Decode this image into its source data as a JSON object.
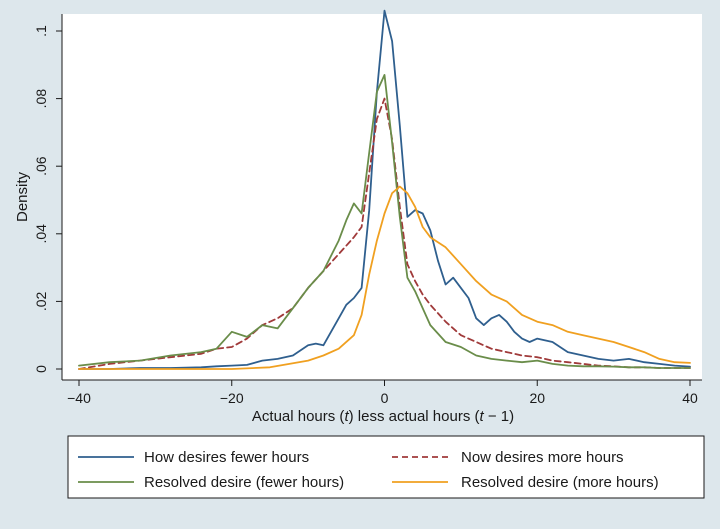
{
  "chart_data": {
    "type": "line",
    "title": "",
    "xlabel": "Actual hours (t) less actual hours (t − 1)",
    "xlabel_parts": [
      "Actual hours (",
      "t",
      ") less actual hours (",
      "t",
      " − 1)"
    ],
    "ylabel": "Density",
    "xlim": [
      -40,
      40
    ],
    "ylim": [
      0,
      0.105
    ],
    "x_ticks": [
      -40,
      -20,
      0,
      20,
      40
    ],
    "x_tick_labels": [
      "−40",
      "−20",
      "0",
      "20",
      "40"
    ],
    "y_ticks": [
      0,
      0.02,
      0.04,
      0.06,
      0.08,
      0.1
    ],
    "y_tick_labels": [
      "0",
      ".02",
      ".04",
      ".06",
      ".08",
      ".1"
    ],
    "grid": false,
    "legend_position": "bottom",
    "series": [
      {
        "name": "How desires fewer hours",
        "color": "#2f5f8e",
        "dash": "solid",
        "x": [
          -40,
          -36,
          -32,
          -28,
          -24,
          -22,
          -20,
          -18,
          -16,
          -14,
          -12,
          -10,
          -9,
          -8,
          -6,
          -5,
          -4,
          -3,
          -2,
          -1,
          0,
          1,
          2,
          3,
          4,
          5,
          6,
          7,
          8,
          9,
          10,
          11,
          12,
          13,
          14,
          15,
          16,
          17,
          18,
          19,
          20,
          22,
          24,
          26,
          28,
          30,
          32,
          34,
          36,
          38,
          40
        ],
        "y": [
          0,
          0,
          0.0003,
          0.0003,
          0.0005,
          0.0008,
          0.001,
          0.0012,
          0.0025,
          0.003,
          0.004,
          0.007,
          0.0075,
          0.007,
          0.015,
          0.019,
          0.021,
          0.024,
          0.047,
          0.082,
          0.106,
          0.097,
          0.072,
          0.045,
          0.047,
          0.046,
          0.041,
          0.032,
          0.025,
          0.027,
          0.024,
          0.021,
          0.015,
          0.013,
          0.015,
          0.016,
          0.014,
          0.011,
          0.009,
          0.008,
          0.009,
          0.008,
          0.005,
          0.004,
          0.003,
          0.0025,
          0.003,
          0.002,
          0.0015,
          0.001,
          0.0007
        ]
      },
      {
        "name": "Now desires more hours",
        "color": "#a03a3a",
        "dash": "dashed",
        "x": [
          -40,
          -36,
          -32,
          -28,
          -24,
          -22,
          -20,
          -18,
          -16,
          -14,
          -12,
          -10,
          -8,
          -6,
          -4,
          -3,
          -2,
          -1,
          0,
          1,
          2,
          3,
          4,
          5,
          6,
          8,
          10,
          12,
          14,
          16,
          18,
          20,
          22,
          24,
          26,
          28,
          30,
          32,
          34,
          36,
          38,
          40
        ],
        "y": [
          0,
          0.0015,
          0.0025,
          0.0035,
          0.0045,
          0.006,
          0.0065,
          0.009,
          0.013,
          0.015,
          0.018,
          0.024,
          0.029,
          0.034,
          0.039,
          0.042,
          0.058,
          0.074,
          0.08,
          0.068,
          0.048,
          0.031,
          0.026,
          0.022,
          0.019,
          0.014,
          0.01,
          0.008,
          0.006,
          0.005,
          0.004,
          0.0035,
          0.0025,
          0.002,
          0.0015,
          0.001,
          0.0008,
          0.0005,
          0.0005,
          0.0003,
          0.0003,
          0.0003
        ]
      },
      {
        "name": "Resolved desire (fewer hours)",
        "color": "#6a8d4a",
        "dash": "solid",
        "x": [
          -40,
          -36,
          -32,
          -28,
          -24,
          -22,
          -20,
          -18,
          -16,
          -14,
          -12,
          -10,
          -8,
          -6,
          -5,
          -4,
          -3,
          -2,
          -1,
          0,
          1,
          2,
          3,
          4,
          5,
          6,
          8,
          10,
          12,
          14,
          16,
          18,
          20,
          22,
          24,
          26,
          28,
          30,
          32,
          34,
          36,
          38,
          40
        ],
        "y": [
          0.001,
          0.002,
          0.0025,
          0.004,
          0.005,
          0.006,
          0.011,
          0.0095,
          0.013,
          0.012,
          0.018,
          0.024,
          0.029,
          0.038,
          0.044,
          0.049,
          0.046,
          0.064,
          0.082,
          0.087,
          0.067,
          0.045,
          0.027,
          0.023,
          0.018,
          0.013,
          0.008,
          0.0065,
          0.004,
          0.003,
          0.0025,
          0.002,
          0.0025,
          0.0015,
          0.001,
          0.0008,
          0.0008,
          0.0007,
          0.0005,
          0.0005,
          0.0003,
          0.0003,
          0.0003
        ]
      },
      {
        "name": "Resolved desire (more hours)",
        "color": "#f0a020",
        "dash": "solid",
        "x": [
          -40,
          -30,
          -20,
          -15,
          -10,
          -8,
          -6,
          -4,
          -3,
          -2,
          -1,
          0,
          1,
          2,
          3,
          4,
          5,
          6,
          8,
          10,
          12,
          14,
          16,
          18,
          20,
          22,
          24,
          26,
          28,
          30,
          32,
          34,
          36,
          38,
          40
        ],
        "y": [
          0,
          0,
          0,
          0.0005,
          0.0025,
          0.004,
          0.006,
          0.01,
          0.016,
          0.028,
          0.038,
          0.046,
          0.052,
          0.054,
          0.052,
          0.048,
          0.042,
          0.039,
          0.036,
          0.031,
          0.026,
          0.022,
          0.02,
          0.016,
          0.014,
          0.013,
          0.011,
          0.01,
          0.009,
          0.008,
          0.0065,
          0.005,
          0.003,
          0.002,
          0.0018
        ]
      }
    ]
  }
}
